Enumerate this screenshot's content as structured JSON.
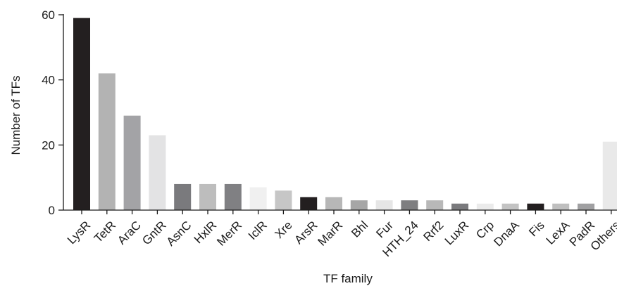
{
  "chart_data": {
    "type": "bar",
    "title": "",
    "xlabel": "TF family",
    "ylabel": "Number of TFs",
    "ylim": [
      0,
      60
    ],
    "yticks": [
      0,
      20,
      40,
      60
    ],
    "grid": false,
    "categories": [
      "LysR",
      "TetR",
      "AraC",
      "GntR",
      "AsnC",
      "HxlR",
      "MerR",
      "IclR",
      "Xre",
      "ArsR",
      "MarR",
      "Bhl",
      "Fur",
      "HTH_24",
      "Rrf2",
      "LuxR",
      "Crp",
      "DnaA",
      "Fis",
      "LexA",
      "PadR",
      "Others"
    ],
    "values": [
      59,
      42,
      29,
      23,
      8,
      8,
      8,
      7,
      6,
      4,
      4,
      3,
      3,
      3,
      3,
      2,
      2,
      2,
      2,
      2,
      2,
      21
    ],
    "colors": [
      "#231f20",
      "#b3b3b3",
      "#a3a3a6",
      "#e3e3e4",
      "#7a7a7d",
      "#bdbdbd",
      "#808083",
      "#f0f0f0",
      "#c6c6c6",
      "#231f20",
      "#b7b7b7",
      "#a6a6a6",
      "#e6e6e6",
      "#7e7e80",
      "#b8b8b8",
      "#7a7a7d",
      "#ebebeb",
      "#c3c3c3",
      "#231f20",
      "#bfbfbf",
      "#a0a0a2",
      "#e9e9e9"
    ]
  }
}
